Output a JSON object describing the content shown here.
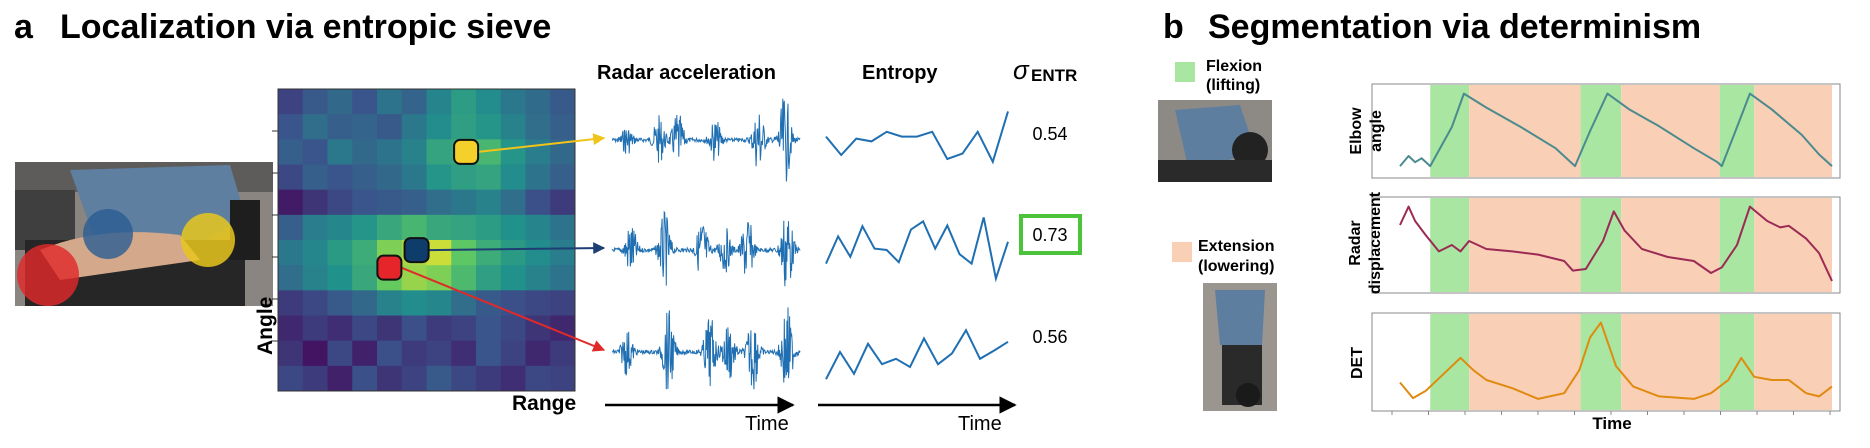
{
  "panel_a": {
    "letter": "a",
    "title": "Localization via entropic sieve",
    "col_headers": {
      "radar": "Radar acceleration",
      "entropy": "Entropy",
      "sigma_symbol": "σ",
      "sigma_sub": "ENTR"
    },
    "heatmap": {
      "xlabel": "Range",
      "ylabel": "Angle",
      "rows": 12,
      "cols": 12,
      "values": [
        [
          0.2,
          0.28,
          0.34,
          0.26,
          0.38,
          0.32,
          0.45,
          0.55,
          0.48,
          0.4,
          0.35,
          0.28
        ],
        [
          0.26,
          0.36,
          0.3,
          0.32,
          0.28,
          0.4,
          0.48,
          0.56,
          0.52,
          0.44,
          0.36,
          0.3
        ],
        [
          0.3,
          0.26,
          0.4,
          0.34,
          0.38,
          0.44,
          0.58,
          0.6,
          0.66,
          0.52,
          0.42,
          0.34
        ],
        [
          0.22,
          0.3,
          0.26,
          0.3,
          0.34,
          0.4,
          0.52,
          0.56,
          0.58,
          0.48,
          0.38,
          0.3
        ],
        [
          0.08,
          0.16,
          0.22,
          0.26,
          0.28,
          0.3,
          0.36,
          0.4,
          0.44,
          0.36,
          0.24,
          0.18
        ],
        [
          0.3,
          0.42,
          0.46,
          0.52,
          0.6,
          0.66,
          0.6,
          0.58,
          0.55,
          0.5,
          0.45,
          0.38
        ],
        [
          0.4,
          0.46,
          0.54,
          0.62,
          0.8,
          0.86,
          0.92,
          0.74,
          0.62,
          0.54,
          0.48,
          0.42
        ],
        [
          0.36,
          0.44,
          0.5,
          0.6,
          0.76,
          0.84,
          0.8,
          0.68,
          0.56,
          0.5,
          0.44,
          0.38
        ],
        [
          0.18,
          0.22,
          0.28,
          0.34,
          0.44,
          0.48,
          0.46,
          0.36,
          0.28,
          0.24,
          0.22,
          0.2
        ],
        [
          0.12,
          0.18,
          0.14,
          0.22,
          0.16,
          0.24,
          0.18,
          0.2,
          0.26,
          0.22,
          0.16,
          0.12
        ],
        [
          0.16,
          0.06,
          0.22,
          0.1,
          0.24,
          0.18,
          0.2,
          0.14,
          0.26,
          0.2,
          0.12,
          0.18
        ],
        [
          0.22,
          0.18,
          0.1,
          0.24,
          0.16,
          0.2,
          0.28,
          0.22,
          0.18,
          0.14,
          0.22,
          0.2
        ]
      ]
    },
    "markers": [
      {
        "name": "yellow",
        "color": "#f5cf2a",
        "arrow": "#f0c419",
        "cell": [
          2.5,
          7.6
        ],
        "row": 0
      },
      {
        "name": "navy",
        "color": "#0f3d6b",
        "arrow": "#1d3f73",
        "cell": [
          6.4,
          5.6
        ],
        "row": 1
      },
      {
        "name": "red",
        "color": "#e5252a",
        "arrow": "#e02a2a",
        "cell": [
          7.1,
          4.5
        ],
        "row": 2
      }
    ],
    "rows": [
      {
        "sigma": "0.54",
        "highlight": false,
        "entropy": [
          0.55,
          0.28,
          0.52,
          0.48,
          0.62,
          0.55,
          0.55,
          0.62,
          0.22,
          0.3,
          0.62,
          0.18,
          0.92
        ]
      },
      {
        "sigma": "0.73",
        "highlight": true,
        "entropy": [
          0.3,
          0.7,
          0.4,
          0.85,
          0.52,
          0.5,
          0.32,
          0.8,
          0.92,
          0.52,
          0.86,
          0.44,
          0.3,
          0.98,
          0.08,
          0.62
        ]
      },
      {
        "sigma": "0.56",
        "highlight": false,
        "entropy": [
          0.1,
          0.5,
          0.18,
          0.62,
          0.32,
          0.4,
          0.28,
          0.7,
          0.32,
          0.48,
          0.82,
          0.4,
          0.52,
          0.65
        ]
      }
    ],
    "time_label": "Time",
    "highlight_color": "#4bc43b"
  },
  "panel_b": {
    "letter": "b",
    "title": "Segmentation via determinism",
    "legend": [
      {
        "label_line1": "Flexion",
        "label_line2": "(lifting)",
        "color": "#a8e6a1"
      },
      {
        "label_line1": "Extension",
        "label_line2": "(lowering)",
        "color": "#f9cfb5"
      }
    ],
    "plots": [
      {
        "ylabel_line1": "Elbow",
        "ylabel_line2": "angle",
        "color": "#4b8a8e"
      },
      {
        "ylabel_line1": "Radar",
        "ylabel_line2": "displacement",
        "color": "#9b2a55"
      },
      {
        "ylabel_line1": "DET",
        "ylabel_line2": "",
        "color": "#e08a10"
      }
    ],
    "xlabel": "Time",
    "segments": [
      {
        "type": "flexion",
        "start": 0.07,
        "end": 0.16
      },
      {
        "type": "extension",
        "start": 0.16,
        "end": 0.418
      },
      {
        "type": "flexion",
        "start": 0.418,
        "end": 0.512
      },
      {
        "type": "extension",
        "start": 0.512,
        "end": 0.74
      },
      {
        "type": "flexion",
        "start": 0.74,
        "end": 0.82
      },
      {
        "type": "extension",
        "start": 0.82,
        "end": 1.0
      }
    ],
    "elbow_angle": [
      [
        0.0,
        0.05
      ],
      [
        0.02,
        0.18
      ],
      [
        0.035,
        0.1
      ],
      [
        0.05,
        0.15
      ],
      [
        0.07,
        0.05
      ],
      [
        0.12,
        0.55
      ],
      [
        0.148,
        0.98
      ],
      [
        0.2,
        0.8
      ],
      [
        0.28,
        0.55
      ],
      [
        0.36,
        0.28
      ],
      [
        0.405,
        0.05
      ],
      [
        0.44,
        0.5
      ],
      [
        0.48,
        0.98
      ],
      [
        0.53,
        0.78
      ],
      [
        0.6,
        0.56
      ],
      [
        0.68,
        0.28
      ],
      [
        0.735,
        0.1
      ],
      [
        0.745,
        0.05
      ],
      [
        0.78,
        0.55
      ],
      [
        0.81,
        0.98
      ],
      [
        0.86,
        0.78
      ],
      [
        0.93,
        0.45
      ],
      [
        0.97,
        0.2
      ],
      [
        1.0,
        0.05
      ]
    ],
    "radar_displacement": [
      [
        0.0,
        0.75
      ],
      [
        0.02,
        0.98
      ],
      [
        0.035,
        0.8
      ],
      [
        0.06,
        0.62
      ],
      [
        0.09,
        0.42
      ],
      [
        0.12,
        0.5
      ],
      [
        0.14,
        0.42
      ],
      [
        0.16,
        0.55
      ],
      [
        0.2,
        0.45
      ],
      [
        0.26,
        0.42
      ],
      [
        0.32,
        0.38
      ],
      [
        0.38,
        0.3
      ],
      [
        0.4,
        0.18
      ],
      [
        0.43,
        0.2
      ],
      [
        0.47,
        0.55
      ],
      [
        0.495,
        0.92
      ],
      [
        0.52,
        0.68
      ],
      [
        0.56,
        0.45
      ],
      [
        0.62,
        0.35
      ],
      [
        0.68,
        0.3
      ],
      [
        0.72,
        0.15
      ],
      [
        0.745,
        0.22
      ],
      [
        0.78,
        0.5
      ],
      [
        0.81,
        0.98
      ],
      [
        0.85,
        0.8
      ],
      [
        0.88,
        0.72
      ],
      [
        0.9,
        0.74
      ],
      [
        0.94,
        0.58
      ],
      [
        0.97,
        0.4
      ],
      [
        1.0,
        0.05
      ]
    ],
    "determinism": [
      [
        0.0,
        0.25
      ],
      [
        0.03,
        0.06
      ],
      [
        0.06,
        0.15
      ],
      [
        0.1,
        0.35
      ],
      [
        0.14,
        0.55
      ],
      [
        0.17,
        0.4
      ],
      [
        0.2,
        0.28
      ],
      [
        0.26,
        0.18
      ],
      [
        0.32,
        0.05
      ],
      [
        0.38,
        0.12
      ],
      [
        0.415,
        0.4
      ],
      [
        0.44,
        0.8
      ],
      [
        0.465,
        0.98
      ],
      [
        0.5,
        0.45
      ],
      [
        0.54,
        0.2
      ],
      [
        0.6,
        0.08
      ],
      [
        0.68,
        0.05
      ],
      [
        0.72,
        0.12
      ],
      [
        0.76,
        0.28
      ],
      [
        0.79,
        0.55
      ],
      [
        0.82,
        0.32
      ],
      [
        0.86,
        0.28
      ],
      [
        0.9,
        0.28
      ],
      [
        0.94,
        0.12
      ],
      [
        0.97,
        0.08
      ],
      [
        1.0,
        0.2
      ]
    ]
  }
}
